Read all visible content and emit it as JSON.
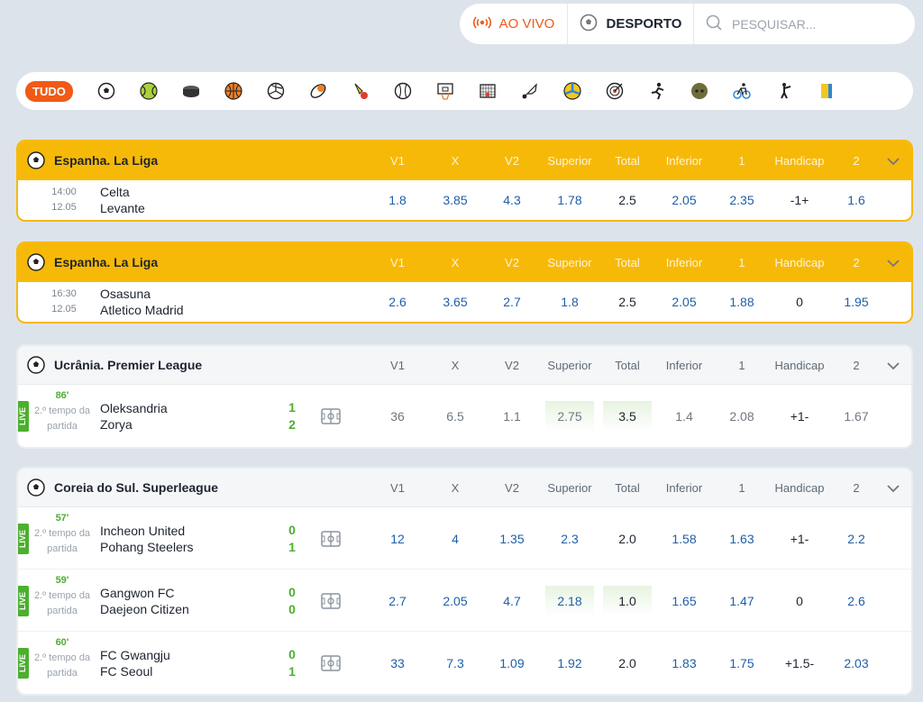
{
  "topbar": {
    "live_label": "AO VIVO",
    "sport_label": "DESPORTO",
    "search_placeholder": "PESQUISAR..."
  },
  "sportbar": {
    "all_label": "TUDO",
    "icons": [
      "football-icon",
      "tennis-icon",
      "hockey-icon",
      "basketball-icon",
      "volleyball-icon",
      "rugby-icon",
      "badminton-icon",
      "baseball-icon",
      "basketball-hoop-icon",
      "futsal-goal-icon",
      "shuttlecock-icon",
      "beach-volleyball-icon",
      "darts-icon",
      "athletics-icon",
      "snooker-icon",
      "cycling-icon",
      "shooting-icon",
      "special-icon"
    ]
  },
  "columns": [
    "V1",
    "X",
    "V2",
    "Superior",
    "Total",
    "Inferior",
    "1",
    "Handicap",
    "2"
  ],
  "blocks": [
    {
      "league": "Espanha. La Liga",
      "style": "highlight",
      "rows": [
        {
          "time": "14:00",
          "date": "12.05",
          "home": "Celta",
          "away": "Levante",
          "odds": [
            "1.8",
            "3.85",
            "4.3",
            "1.78",
            "2.5",
            "2.05",
            "2.35",
            "-1+",
            "1.6"
          ]
        }
      ]
    },
    {
      "league": "Espanha. La Liga",
      "style": "highlight",
      "rows": [
        {
          "time": "16:30",
          "date": "12.05",
          "home": "Osasuna",
          "away": "Atletico Madrid",
          "odds": [
            "2.6",
            "3.65",
            "2.7",
            "1.8",
            "2.5",
            "2.05",
            "1.88",
            "0",
            "1.95"
          ]
        }
      ]
    },
    {
      "league": "Ucrânia. Premier League",
      "style": "plain",
      "rows": [
        {
          "live": "LIVE",
          "minute": "86'",
          "period": "2.º tempo da",
          "period2": "partida",
          "home": "Oleksandria",
          "away": "Zorya",
          "score_home": "1",
          "score_away": "2",
          "odds": [
            "36",
            "6.5",
            "1.1",
            "2.75",
            "3.5",
            "1.4",
            "2.08",
            "+1-",
            "1.67"
          ],
          "muted": true
        }
      ]
    },
    {
      "league": "Coreia do Sul. Superleague",
      "style": "plain",
      "rows": [
        {
          "live": "LIVE",
          "minute": "57'",
          "period": "2.º tempo da",
          "period2": "partida",
          "home": "Incheon United",
          "away": "Pohang Steelers",
          "score_home": "0",
          "score_away": "1",
          "odds": [
            "12",
            "4",
            "1.35",
            "2.3",
            "2.0",
            "1.58",
            "1.63",
            "+1-",
            "2.2"
          ]
        },
        {
          "live": "LIVE",
          "minute": "59'",
          "period": "2.º tempo da",
          "period2": "partida",
          "home": "Gangwon FC",
          "away": "Daejeon Citizen",
          "score_home": "0",
          "score_away": "0",
          "odds": [
            "2.7",
            "2.05",
            "4.7",
            "2.18",
            "1.0",
            "1.65",
            "1.47",
            "0",
            "2.6"
          ],
          "hibox": true
        },
        {
          "live": "LIVE",
          "minute": "60'",
          "period": "2.º tempo da",
          "period2": "partida",
          "home": "FC Gwangju",
          "away": "FC Seoul",
          "score_home": "0",
          "score_away": "1",
          "odds": [
            "33",
            "7.3",
            "1.09",
            "1.92",
            "2.0",
            "1.83",
            "1.75",
            "+1.5-",
            "2.03"
          ]
        }
      ]
    }
  ],
  "colors": {
    "accent": "#f05a16",
    "league_highlight": "#f7b908",
    "odd_blue": "#1f5fa8",
    "live_green": "#4caf2e"
  }
}
